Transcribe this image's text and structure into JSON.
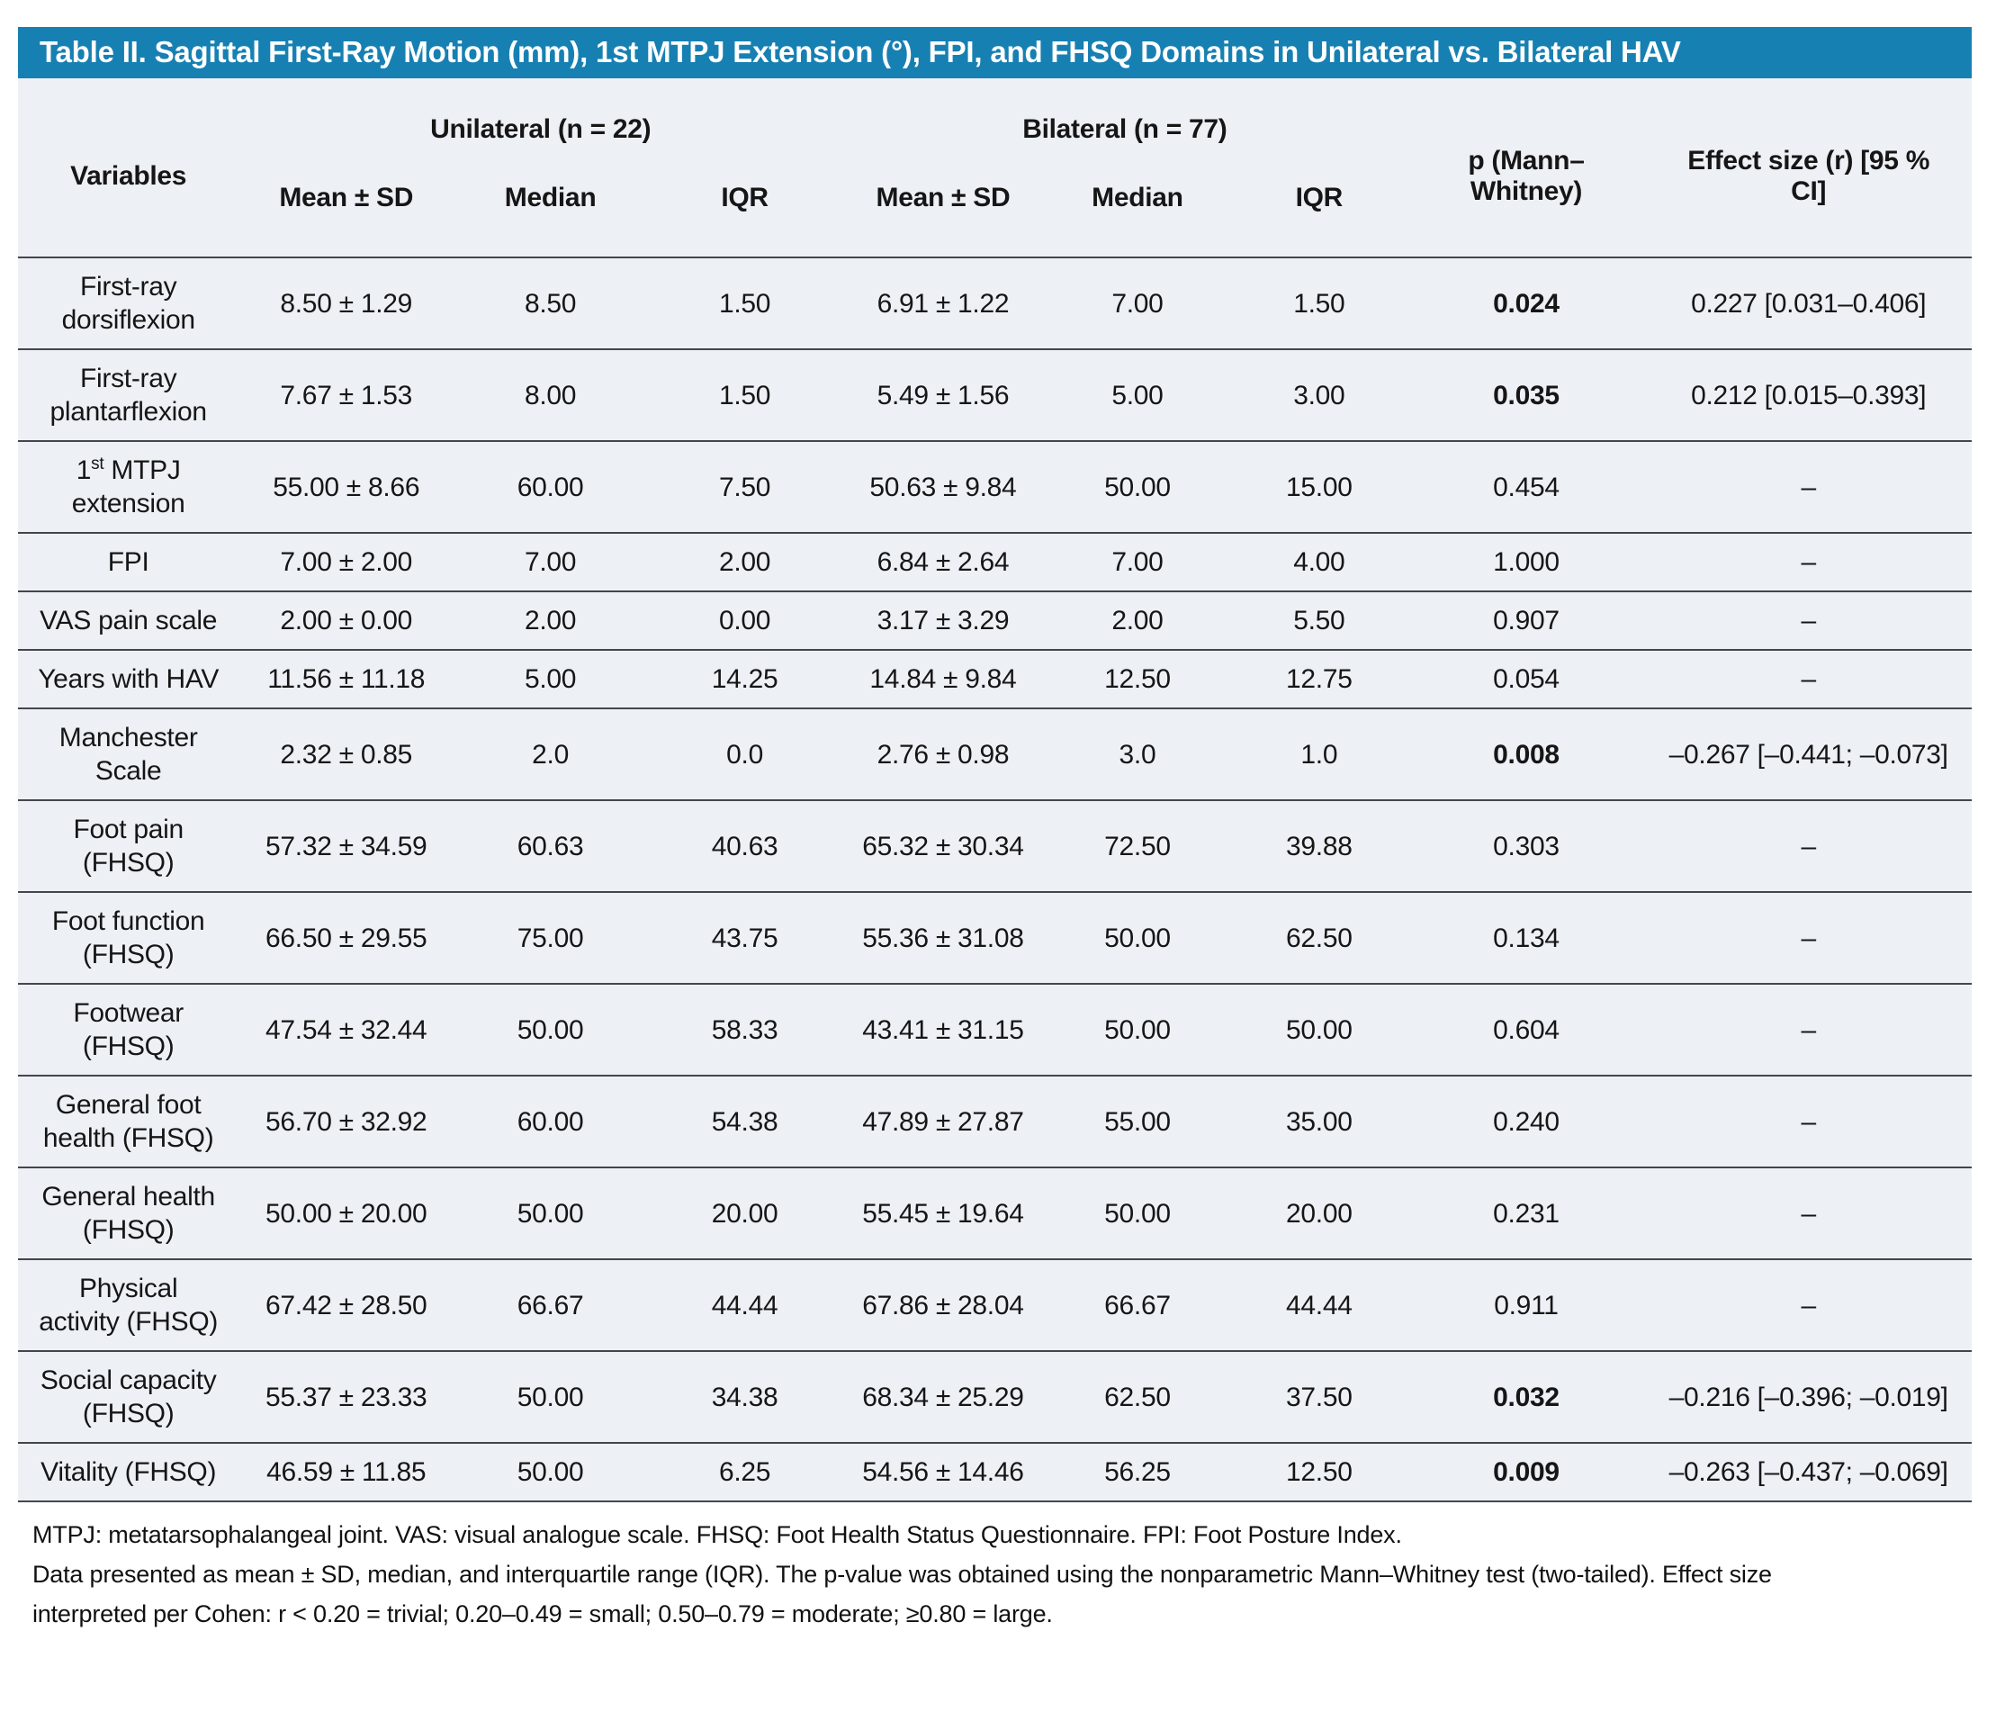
{
  "title": "Table II. Sagittal First-Ray Motion (mm), 1st MTPJ Extension (°), FPI, and FHSQ Domains in Unilateral vs. Bilateral HAV",
  "colors": {
    "title_bar": "#1780b2",
    "title_text": "#ffffff",
    "table_background": "#edf1f6",
    "row_line": "#43464a",
    "body_text": "#161616"
  },
  "table": {
    "variables_header": "Variables",
    "groups": [
      {
        "label": "Unilateral (n = 22)",
        "sub": [
          "Mean ± SD",
          "Median",
          "IQR"
        ]
      },
      {
        "label": "Bilateral (n = 77)",
        "sub": [
          "Mean ± SD",
          "Median",
          "IQR"
        ]
      }
    ],
    "p_header": "p (Mann–Whitney)",
    "effect_header": "Effect size (r) [95 % CI]",
    "rows": [
      {
        "variable": "First-ray dorsiflexion",
        "uni": [
          "8.50 ± 1.29",
          "8.50",
          "1.50"
        ],
        "bil": [
          "6.91 ± 1.22",
          "7.00",
          "1.50"
        ],
        "p": "0.024",
        "p_bold": true,
        "effect": "0.227 [0.031–0.406]"
      },
      {
        "variable": "First-ray plantarflexion",
        "uni": [
          "7.67 ± 1.53",
          "8.00",
          "1.50"
        ],
        "bil": [
          "5.49 ± 1.56",
          "5.00",
          "3.00"
        ],
        "p": "0.035",
        "p_bold": true,
        "effect": "0.212 [0.015–0.393]"
      },
      {
        "variable": "1^{st} MTPJ extension",
        "uni": [
          "55.00 ± 8.66",
          "60.00",
          "7.50"
        ],
        "bil": [
          "50.63 ± 9.84",
          "50.00",
          "15.00"
        ],
        "p": "0.454",
        "p_bold": false,
        "effect": "–"
      },
      {
        "variable": "FPI",
        "uni": [
          "7.00 ± 2.00",
          "7.00",
          "2.00"
        ],
        "bil": [
          "6.84 ± 2.64",
          "7.00",
          "4.00"
        ],
        "p": "1.000",
        "p_bold": false,
        "effect": "–"
      },
      {
        "variable": "VAS pain scale",
        "uni": [
          "2.00 ± 0.00",
          "2.00",
          "0.00"
        ],
        "bil": [
          "3.17 ± 3.29",
          "2.00",
          "5.50"
        ],
        "p": "0.907",
        "p_bold": false,
        "effect": "–"
      },
      {
        "variable": "Years with HAV",
        "uni": [
          "11.56 ± 11.18",
          "5.00",
          "14.25"
        ],
        "bil": [
          "14.84 ± 9.84",
          "12.50",
          "12.75"
        ],
        "p": "0.054",
        "p_bold": false,
        "effect": "–"
      },
      {
        "variable": "Manchester Scale",
        "uni": [
          "2.32 ± 0.85",
          "2.0",
          "0.0"
        ],
        "bil": [
          "2.76 ± 0.98",
          "3.0",
          "1.0"
        ],
        "p": "0.008",
        "p_bold": true,
        "effect": "–0.267 [–0.441; –0.073]"
      },
      {
        "variable": "Foot pain (FHSQ)",
        "uni": [
          "57.32 ± 34.59",
          "60.63",
          "40.63"
        ],
        "bil": [
          "65.32 ± 30.34",
          "72.50",
          "39.88"
        ],
        "p": "0.303",
        "p_bold": false,
        "effect": "–"
      },
      {
        "variable": "Foot function (FHSQ)",
        "uni": [
          "66.50 ± 29.55",
          "75.00",
          "43.75"
        ],
        "bil": [
          "55.36 ± 31.08",
          "50.00",
          "62.50"
        ],
        "p": "0.134",
        "p_bold": false,
        "effect": "–"
      },
      {
        "variable": "Footwear (FHSQ)",
        "uni": [
          "47.54 ± 32.44",
          "50.00",
          "58.33"
        ],
        "bil": [
          "43.41 ± 31.15",
          "50.00",
          "50.00"
        ],
        "p": "0.604",
        "p_bold": false,
        "effect": "–"
      },
      {
        "variable": "General foot health (FHSQ)",
        "uni": [
          "56.70 ± 32.92",
          "60.00",
          "54.38"
        ],
        "bil": [
          "47.89 ± 27.87",
          "55.00",
          "35.00"
        ],
        "p": "0.240",
        "p_bold": false,
        "effect": "–"
      },
      {
        "variable": "General health (FHSQ)",
        "uni": [
          "50.00 ± 20.00",
          "50.00",
          "20.00"
        ],
        "bil": [
          "55.45 ± 19.64",
          "50.00",
          "20.00"
        ],
        "p": "0.231",
        "p_bold": false,
        "effect": "–"
      },
      {
        "variable": "Physical activity (FHSQ)",
        "uni": [
          "67.42 ± 28.50",
          "66.67",
          "44.44"
        ],
        "bil": [
          "67.86 ± 28.04",
          "66.67",
          "44.44"
        ],
        "p": "0.911",
        "p_bold": false,
        "effect": "–"
      },
      {
        "variable": "Social capacity (FHSQ)",
        "uni": [
          "55.37 ± 23.33",
          "50.00",
          "34.38"
        ],
        "bil": [
          "68.34 ± 25.29",
          "62.50",
          "37.50"
        ],
        "p": "0.032",
        "p_bold": true,
        "effect": "–0.216 [–0.396; –0.019]"
      },
      {
        "variable": "Vitality (FHSQ)",
        "uni": [
          "46.59 ± 11.85",
          "50.00",
          "6.25"
        ],
        "bil": [
          "54.56 ± 14.46",
          "56.25",
          "12.50"
        ],
        "p": "0.009",
        "p_bold": true,
        "effect": "–0.263 [–0.437; –0.069]"
      }
    ]
  },
  "footnotes": [
    "MTPJ: metatarsophalangeal joint. VAS: visual analogue scale. FHSQ: Foot Health Status Questionnaire. FPI: Foot Posture Index.",
    "Data presented as mean ± SD, median, and interquartile range (IQR). The p-value was obtained using the nonparametric Mann–Whitney test (two-tailed). Effect size interpreted per Cohen: r < 0.20 = trivial; 0.20–0.49 = small; 0.50–0.79 = moderate; ≥0.80 = large."
  ]
}
